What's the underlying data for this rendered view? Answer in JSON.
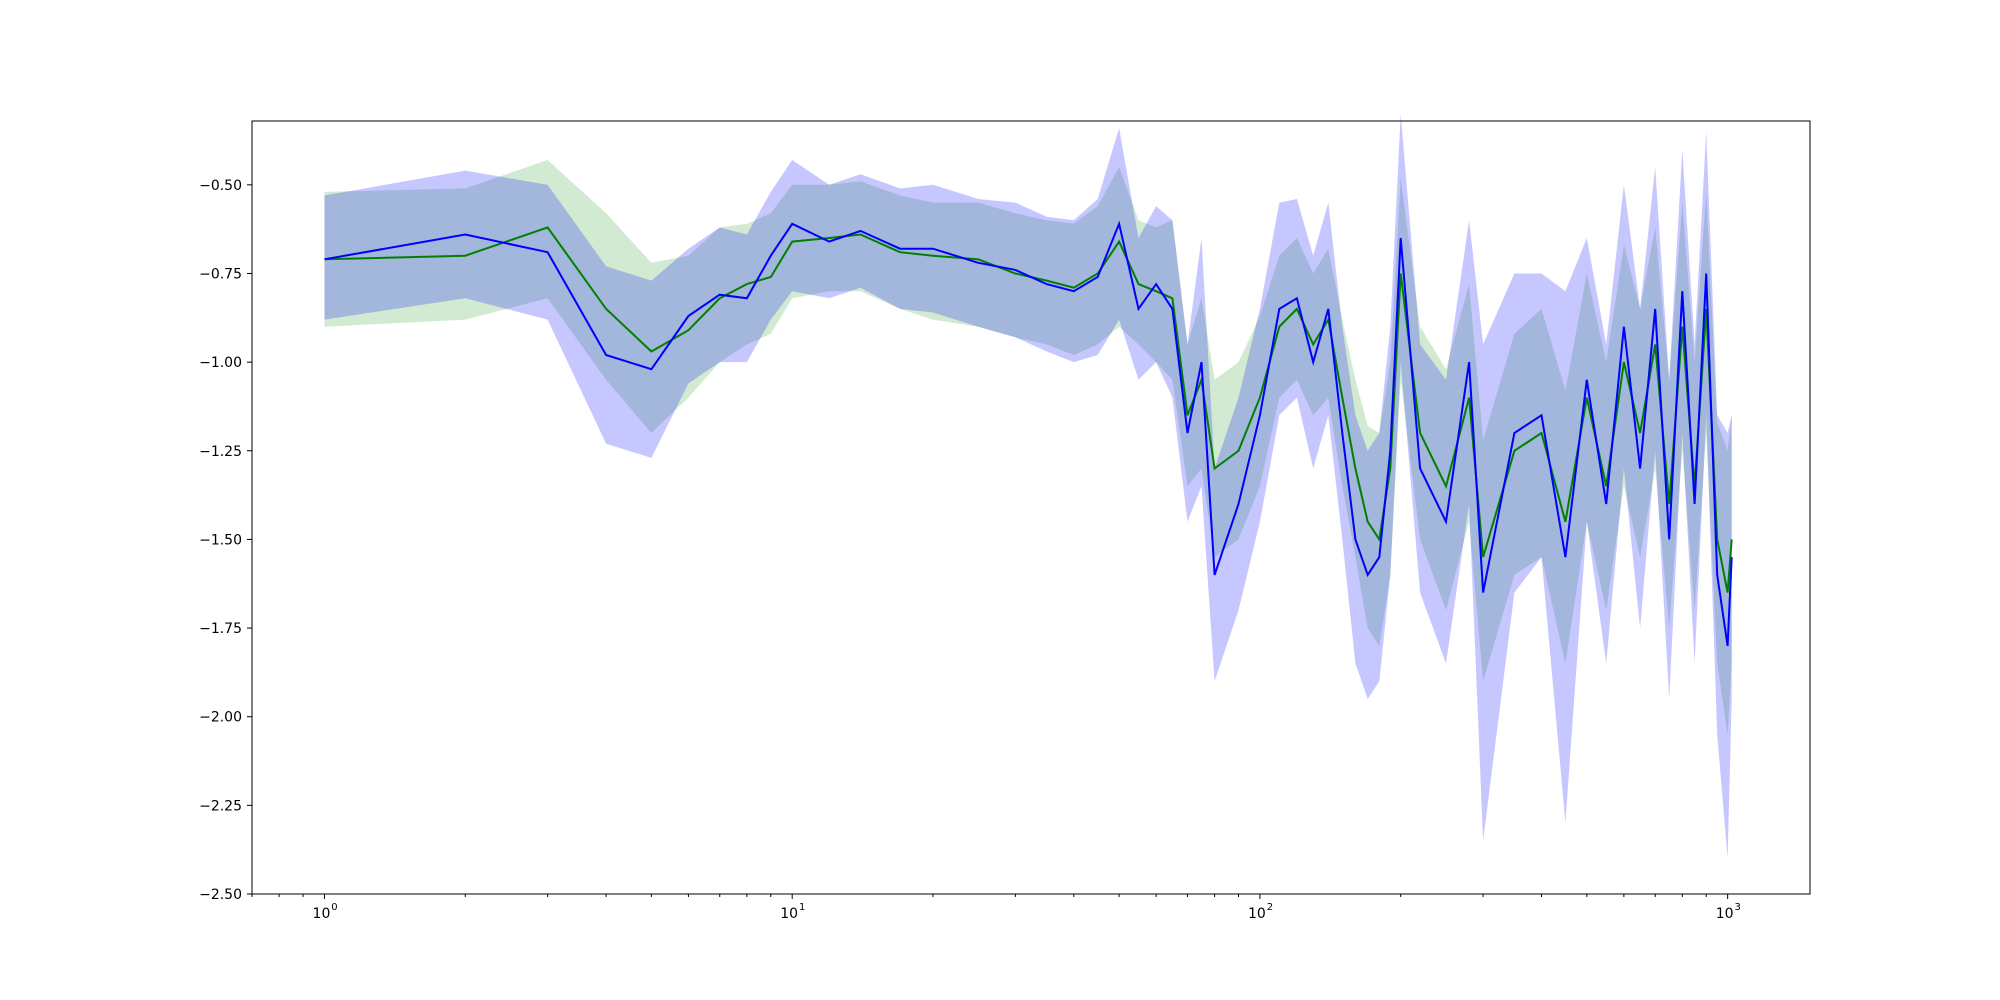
{
  "chart_data": {
    "type": "line",
    "title": "",
    "xlabel": "",
    "ylabel": "",
    "x_scale": "log",
    "xlim": [
      0.7,
      1500
    ],
    "ylim": [
      -2.5,
      -0.32
    ],
    "grid": false,
    "legend": "none",
    "x_ticks": [
      {
        "value": 1,
        "base": "10",
        "exp": "0"
      },
      {
        "value": 10,
        "base": "10",
        "exp": "1"
      },
      {
        "value": 100,
        "base": "10",
        "exp": "2"
      },
      {
        "value": 1000,
        "base": "10",
        "exp": "3"
      }
    ],
    "y_ticks": [
      {
        "value": -0.5,
        "label": "−0.50"
      },
      {
        "value": -0.75,
        "label": "−0.75"
      },
      {
        "value": -1.0,
        "label": "−1.00"
      },
      {
        "value": -1.25,
        "label": "−1.25"
      },
      {
        "value": -1.5,
        "label": "−1.50"
      },
      {
        "value": -1.75,
        "label": "−1.75"
      },
      {
        "value": -2.0,
        "label": "−2.00"
      },
      {
        "value": -2.25,
        "label": "−2.25"
      },
      {
        "value": -2.5,
        "label": "−2.50"
      }
    ],
    "colors": {
      "green_line": "#008000",
      "green_band": "#2ca02c",
      "blue_line": "#0000ff",
      "blue_band": "#0000ff"
    },
    "series": [
      {
        "color": "#008000",
        "x": [
          1,
          2,
          3,
          4,
          5,
          6,
          7,
          8,
          9,
          10,
          12,
          14,
          17,
          20,
          25,
          30,
          35,
          40,
          45,
          50,
          55,
          60,
          65,
          70,
          75,
          80,
          90,
          100,
          110,
          120,
          130,
          140,
          150,
          160,
          170,
          180,
          190,
          200,
          220,
          250,
          280,
          300,
          350,
          400,
          450,
          500,
          550,
          600,
          650,
          700,
          750,
          800,
          850,
          900,
          950,
          1000,
          1020
        ],
        "y": [
          -0.71,
          -0.7,
          -0.62,
          -0.85,
          -0.97,
          -0.91,
          -0.82,
          -0.78,
          -0.76,
          -0.66,
          -0.65,
          -0.64,
          -0.69,
          -0.7,
          -0.71,
          -0.75,
          -0.77,
          -0.79,
          -0.75,
          -0.66,
          -0.78,
          -0.8,
          -0.82,
          -1.15,
          -1.05,
          -1.3,
          -1.25,
          -1.1,
          -0.9,
          -0.85,
          -0.95,
          -0.88,
          -1.1,
          -1.3,
          -1.45,
          -1.5,
          -1.3,
          -0.75,
          -1.2,
          -1.35,
          -1.1,
          -1.55,
          -1.25,
          -1.2,
          -1.45,
          -1.1,
          -1.35,
          -1.0,
          -1.2,
          -0.95,
          -1.4,
          -0.9,
          -1.35,
          -0.85,
          -1.5,
          -1.65,
          -1.5
        ],
        "lower": [
          -0.9,
          -0.88,
          -0.82,
          -1.05,
          -1.2,
          -1.1,
          -1.0,
          -0.95,
          -0.92,
          -0.82,
          -0.8,
          -0.8,
          -0.85,
          -0.88,
          -0.9,
          -0.93,
          -0.95,
          -0.98,
          -0.95,
          -0.9,
          -0.95,
          -1.0,
          -1.05,
          -1.35,
          -1.3,
          -1.55,
          -1.5,
          -1.35,
          -1.1,
          -1.05,
          -1.15,
          -1.1,
          -1.35,
          -1.55,
          -1.75,
          -1.8,
          -1.6,
          -1.05,
          -1.5,
          -1.7,
          -1.45,
          -1.9,
          -1.6,
          -1.55,
          -1.85,
          -1.45,
          -1.7,
          -1.35,
          -1.55,
          -1.3,
          -1.75,
          -1.25,
          -1.7,
          -1.2,
          -1.85,
          -2.05,
          -1.85
        ],
        "upper": [
          -0.52,
          -0.51,
          -0.43,
          -0.58,
          -0.72,
          -0.7,
          -0.62,
          -0.61,
          -0.58,
          -0.5,
          -0.5,
          -0.49,
          -0.53,
          -0.55,
          -0.55,
          -0.58,
          -0.6,
          -0.61,
          -0.56,
          -0.45,
          -0.6,
          -0.62,
          -0.6,
          -0.95,
          -0.82,
          -1.05,
          -1.0,
          -0.87,
          -0.7,
          -0.65,
          -0.75,
          -0.68,
          -0.88,
          -1.05,
          -1.18,
          -1.2,
          -1.0,
          -0.48,
          -0.9,
          -1.02,
          -0.78,
          -1.22,
          -0.92,
          -0.85,
          -1.08,
          -0.75,
          -1.0,
          -0.67,
          -0.85,
          -0.62,
          -1.05,
          -0.55,
          -1.0,
          -0.52,
          -1.17,
          -1.25,
          -1.15
        ]
      },
      {
        "color": "#0000ff",
        "x": [
          1,
          2,
          3,
          4,
          5,
          6,
          7,
          8,
          9,
          10,
          12,
          14,
          17,
          20,
          25,
          30,
          35,
          40,
          45,
          50,
          55,
          60,
          65,
          70,
          75,
          80,
          90,
          100,
          110,
          120,
          130,
          140,
          150,
          160,
          170,
          180,
          190,
          200,
          220,
          250,
          280,
          300,
          350,
          400,
          450,
          500,
          550,
          600,
          650,
          700,
          750,
          800,
          850,
          900,
          950,
          1000,
          1020
        ],
        "y": [
          -0.71,
          -0.64,
          -0.69,
          -0.98,
          -1.02,
          -0.87,
          -0.81,
          -0.82,
          -0.7,
          -0.61,
          -0.66,
          -0.63,
          -0.68,
          -0.68,
          -0.72,
          -0.74,
          -0.78,
          -0.8,
          -0.76,
          -0.61,
          -0.85,
          -0.78,
          -0.85,
          -1.2,
          -1.0,
          -1.6,
          -1.4,
          -1.15,
          -0.85,
          -0.82,
          -1.0,
          -0.85,
          -1.2,
          -1.5,
          -1.6,
          -1.55,
          -1.25,
          -0.65,
          -1.3,
          -1.45,
          -1.0,
          -1.65,
          -1.2,
          -1.15,
          -1.55,
          -1.05,
          -1.4,
          -0.9,
          -1.3,
          -0.85,
          -1.5,
          -0.8,
          -1.4,
          -0.75,
          -1.6,
          -1.8,
          -1.55
        ],
        "lower": [
          -0.88,
          -0.82,
          -0.88,
          -1.23,
          -1.27,
          -1.06,
          -1.0,
          -1.0,
          -0.88,
          -0.8,
          -0.82,
          -0.79,
          -0.85,
          -0.86,
          -0.9,
          -0.93,
          -0.97,
          -1.0,
          -0.98,
          -0.88,
          -1.05,
          -1.0,
          -1.1,
          -1.45,
          -1.35,
          -1.9,
          -1.7,
          -1.45,
          -1.15,
          -1.1,
          -1.3,
          -1.15,
          -1.5,
          -1.85,
          -1.95,
          -1.9,
          -1.6,
          -1.0,
          -1.65,
          -1.85,
          -1.4,
          -2.35,
          -1.65,
          -1.55,
          -2.3,
          -1.45,
          -1.85,
          -1.3,
          -1.75,
          -1.25,
          -1.95,
          -1.2,
          -1.85,
          -1.15,
          -2.05,
          -2.4,
          -1.95
        ],
        "upper": [
          -0.53,
          -0.46,
          -0.5,
          -0.73,
          -0.77,
          -0.68,
          -0.62,
          -0.64,
          -0.52,
          -0.43,
          -0.5,
          -0.47,
          -0.51,
          -0.5,
          -0.54,
          -0.55,
          -0.59,
          -0.6,
          -0.54,
          -0.34,
          -0.65,
          -0.56,
          -0.6,
          -0.95,
          -0.65,
          -1.3,
          -1.1,
          -0.85,
          -0.55,
          -0.54,
          -0.7,
          -0.55,
          -0.9,
          -1.15,
          -1.25,
          -1.2,
          -0.9,
          -0.3,
          -0.95,
          -1.05,
          -0.6,
          -0.95,
          -0.75,
          -0.75,
          -0.8,
          -0.65,
          -0.95,
          -0.5,
          -0.85,
          -0.45,
          -1.05,
          -0.4,
          -0.95,
          -0.35,
          -1.15,
          -1.2,
          -1.15
        ]
      }
    ]
  }
}
